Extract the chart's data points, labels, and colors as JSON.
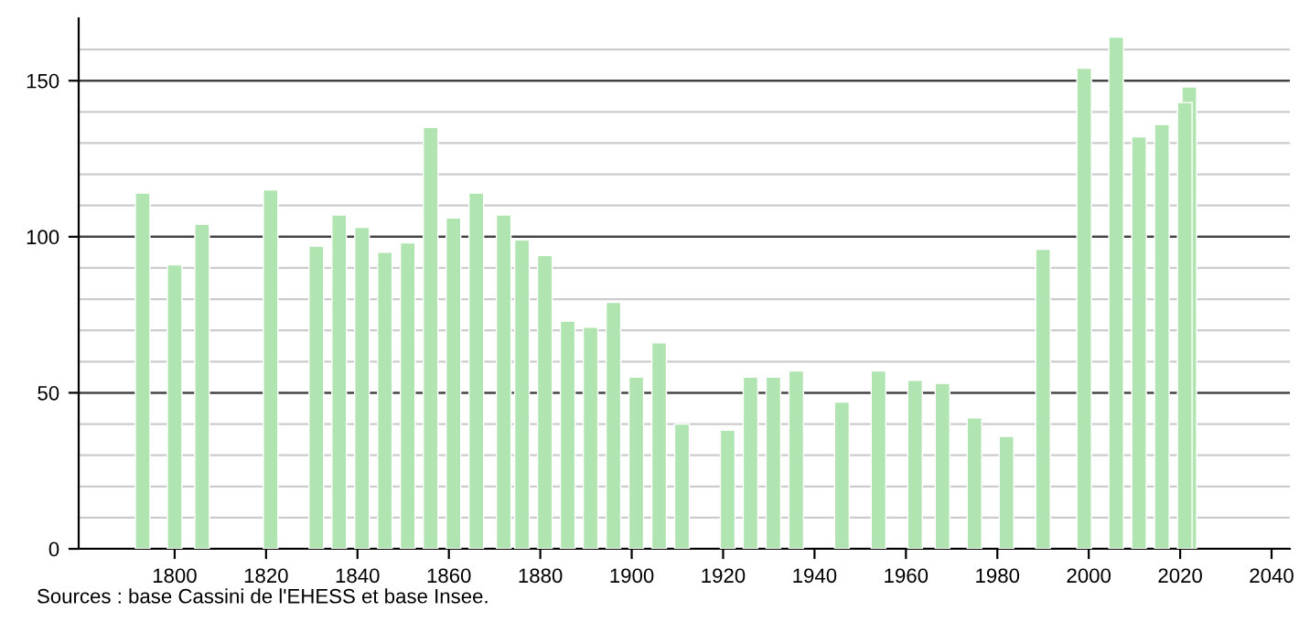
{
  "chart_data": {
    "type": "bar",
    "x": [
      1793,
      1800,
      1806,
      1821,
      1831,
      1836,
      1841,
      1846,
      1851,
      1856,
      1861,
      1866,
      1872,
      1876,
      1881,
      1886,
      1891,
      1896,
      1901,
      1906,
      1911,
      1921,
      1926,
      1931,
      1936,
      1946,
      1954,
      1962,
      1968,
      1975,
      1982,
      1990,
      1999,
      2006,
      2011,
      2016,
      2021,
      2022
    ],
    "values": [
      114,
      91,
      104,
      115,
      97,
      107,
      103,
      95,
      98,
      135,
      106,
      114,
      107,
      99,
      94,
      73,
      71,
      79,
      55,
      66,
      40,
      38,
      55,
      55,
      57,
      47,
      57,
      54,
      53,
      42,
      36,
      96,
      154,
      164,
      132,
      136,
      143,
      148
    ],
    "color": "#b0e4b0",
    "xlim": [
      1779,
      2044
    ],
    "xticks": [
      1800,
      1820,
      1840,
      1860,
      1880,
      1900,
      1920,
      1940,
      1960,
      1980,
      2000,
      2020,
      2040
    ],
    "ylim": [
      0,
      170
    ],
    "yticks": [
      0,
      50,
      100,
      150
    ],
    "grid": "y",
    "annotations": [
      "Sources : base Cassini de l'EHESS et base Insee."
    ]
  }
}
